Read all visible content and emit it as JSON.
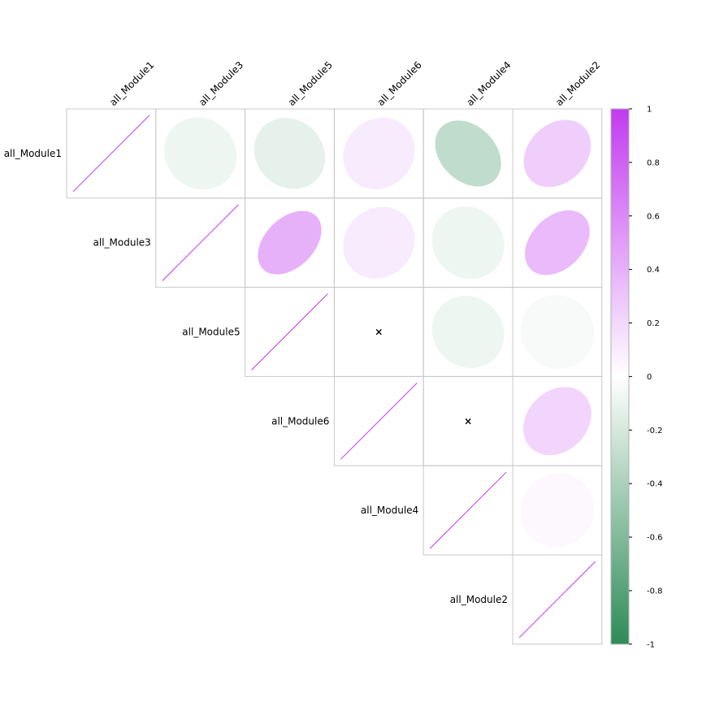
{
  "chart_data": {
    "type": "heatmap",
    "method": "ellipse",
    "layout": "upper-triangle",
    "title": "",
    "variables": [
      "all_Module1",
      "all_Module3",
      "all_Module5",
      "all_Module6",
      "all_Module4",
      "all_Module2"
    ],
    "matrix": [
      [
        1.0,
        -0.08,
        -0.12,
        0.1,
        -0.3,
        0.25
      ],
      [
        -0.08,
        1.0,
        0.4,
        0.1,
        -0.08,
        0.35
      ],
      [
        -0.12,
        0.4,
        1.0,
        0.0,
        -0.08,
        -0.04
      ],
      [
        0.1,
        0.1,
        0.0,
        1.0,
        0.0,
        0.22
      ],
      [
        -0.3,
        -0.08,
        -0.08,
        0.0,
        1.0,
        0.04
      ],
      [
        0.25,
        0.35,
        -0.04,
        0.22,
        0.04,
        1.0
      ]
    ],
    "insignificant_marker": "×",
    "insignificant_cells": [
      [
        2,
        3
      ],
      [
        3,
        4
      ]
    ],
    "colorbar": {
      "range": [
        -1,
        1
      ],
      "ticks": [
        "1",
        "0.8",
        "0.6",
        "0.4",
        "0.2",
        "0",
        "-0.2",
        "-0.4",
        "-0.6",
        "-0.8",
        "-1"
      ],
      "colors": {
        "negative": "#2e8b57",
        "neutral": "#ffffff",
        "positive": "#c23bf0"
      }
    },
    "grid_color": "#c8c8c8"
  }
}
